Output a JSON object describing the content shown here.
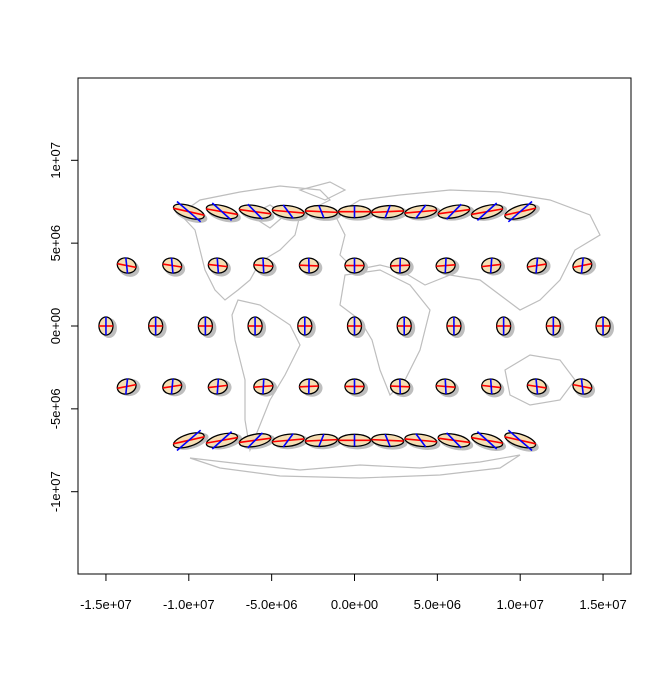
{
  "chart_data": {
    "type": "scatter",
    "title": "",
    "xlabel": "",
    "ylabel": "",
    "xlim": [
      -16700000,
      16700000
    ],
    "ylim": [
      -15000000,
      15000000
    ],
    "x_ticks": [
      {
        "value": -15000000,
        "label": "-1.5e+07"
      },
      {
        "value": -10000000,
        "label": "-1.0e+07"
      },
      {
        "value": -5000000,
        "label": "-5.0e+06"
      },
      {
        "value": 0,
        "label": "0.0e+00"
      },
      {
        "value": 5000000,
        "label": "5.0e+06"
      },
      {
        "value": 10000000,
        "label": "1.0e+07"
      },
      {
        "value": 15000000,
        "label": "1.5e+07"
      }
    ],
    "y_ticks": [
      {
        "value": -10000000,
        "label": "-1e+07"
      },
      {
        "value": -5000000,
        "label": "-5e+06"
      },
      {
        "value": 0,
        "label": "0e+00"
      },
      {
        "value": 5000000,
        "label": "5e+06"
      },
      {
        "value": 10000000,
        "label": "1e+07"
      }
    ],
    "grid": false,
    "background": "world map outline",
    "colors": {
      "map": "#bebebe",
      "ellipse_fill": "#f5deb3",
      "ellipse_outline": "#000000",
      "parallel_axis": "#ff0000",
      "meridian_axis": "#0000ff",
      "shadow": "#bebebe"
    },
    "indicatrix_rows": [
      {
        "y": 6900000,
        "x": [
          -10000000,
          -8000000,
          -6000000,
          -4000000,
          -2000000,
          0,
          2000000,
          4000000,
          6000000,
          8000000,
          10000000
        ]
      },
      {
        "y": 3650000,
        "x": [
          -13750000,
          -11000000,
          -8250000,
          -5500000,
          -2750000,
          0,
          2750000,
          5500000,
          8250000,
          11000000,
          13750000
        ]
      },
      {
        "y": 0,
        "x": [
          -15000000,
          -12000000,
          -9000000,
          -6000000,
          -3000000,
          0,
          3000000,
          6000000,
          9000000,
          12000000,
          15000000
        ]
      },
      {
        "y": -3650000,
        "x": [
          -13750000,
          -11000000,
          -8250000,
          -5500000,
          -2750000,
          0,
          2750000,
          5500000,
          8250000,
          11000000,
          13750000
        ]
      },
      {
        "y": -6900000,
        "x": [
          -10000000,
          -8000000,
          -6000000,
          -4000000,
          -2000000,
          0,
          2000000,
          4000000,
          6000000,
          8000000,
          10000000
        ]
      }
    ]
  }
}
